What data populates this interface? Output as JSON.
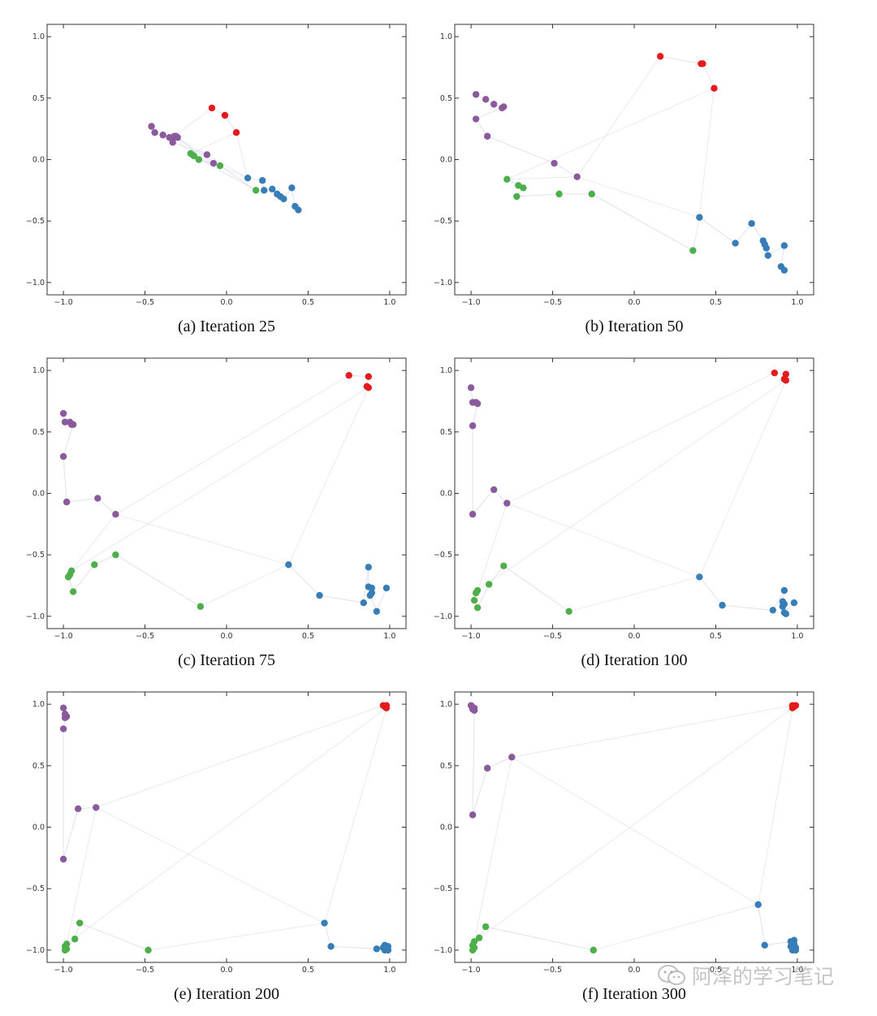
{
  "figure": {
    "watermark": "阿泽的学习笔记",
    "colors": {
      "purple": "#8a5a9c",
      "red": "#e41a1c",
      "green": "#4daf4a",
      "blue": "#377eb8",
      "edge": "#d7d7ea"
    }
  },
  "chart_data": [
    {
      "type": "scatter",
      "caption": "(a) Iteration 25",
      "xlim": [
        -1.1,
        1.1
      ],
      "ylim": [
        -1.1,
        1.1
      ],
      "xticks": [
        "−1.0",
        "−0.5",
        "0.0",
        "0.5",
        "1.0"
      ],
      "yticks": [
        "1.0",
        "0.5",
        "0.0",
        "−0.5",
        "−1.0"
      ],
      "grid": false,
      "series": [
        {
          "color": "purple",
          "points": [
            [
              -0.46,
              0.27
            ],
            [
              -0.44,
              0.22
            ],
            [
              -0.39,
              0.2
            ],
            [
              -0.35,
              0.18
            ],
            [
              -0.33,
              0.17
            ],
            [
              -0.3,
              0.18
            ],
            [
              -0.31,
              0.19
            ],
            [
              -0.33,
              0.14
            ],
            [
              -0.12,
              0.04
            ],
            [
              -0.08,
              -0.03
            ],
            [
              -0.32,
              0.19
            ]
          ]
        },
        {
          "color": "red",
          "points": [
            [
              -0.09,
              0.42
            ],
            [
              -0.01,
              0.36
            ],
            [
              0.06,
              0.22
            ]
          ]
        },
        {
          "color": "green",
          "points": [
            [
              -0.22,
              0.05
            ],
            [
              -0.2,
              0.03
            ],
            [
              -0.17,
              0.0
            ],
            [
              -0.04,
              -0.05
            ],
            [
              0.18,
              -0.25
            ],
            [
              -0.21,
              0.04
            ]
          ]
        },
        {
          "color": "blue",
          "points": [
            [
              0.13,
              -0.15
            ],
            [
              0.22,
              -0.17
            ],
            [
              0.23,
              -0.25
            ],
            [
              0.28,
              -0.24
            ],
            [
              0.31,
              -0.28
            ],
            [
              0.33,
              -0.3
            ],
            [
              0.35,
              -0.32
            ],
            [
              0.4,
              -0.23
            ],
            [
              0.42,
              -0.38
            ],
            [
              0.44,
              -0.41
            ]
          ]
        }
      ]
    },
    {
      "type": "scatter",
      "caption": "(b) Iteration 50",
      "xlim": [
        -1.1,
        1.1
      ],
      "ylim": [
        -1.1,
        1.1
      ],
      "xticks": [
        "−1.0",
        "−0.5",
        "0.0",
        "0.5",
        "1.0"
      ],
      "yticks": [
        "1.0",
        "0.5",
        "0.0",
        "−0.5",
        "−1.0"
      ],
      "grid": false,
      "series": [
        {
          "color": "purple",
          "points": [
            [
              -0.97,
              0.53
            ],
            [
              -0.91,
              0.49
            ],
            [
              -0.86,
              0.45
            ],
            [
              -0.81,
              0.42
            ],
            [
              -0.8,
              0.43
            ],
            [
              -0.97,
              0.33
            ],
            [
              -0.9,
              0.19
            ],
            [
              -0.49,
              -0.03
            ],
            [
              -0.35,
              -0.14
            ]
          ]
        },
        {
          "color": "red",
          "points": [
            [
              0.16,
              0.84
            ],
            [
              0.41,
              0.78
            ],
            [
              0.42,
              0.78
            ],
            [
              0.49,
              0.58
            ]
          ]
        },
        {
          "color": "green",
          "points": [
            [
              -0.78,
              -0.16
            ],
            [
              -0.71,
              -0.21
            ],
            [
              -0.68,
              -0.23
            ],
            [
              -0.72,
              -0.3
            ],
            [
              -0.46,
              -0.28
            ],
            [
              -0.26,
              -0.28
            ],
            [
              0.36,
              -0.74
            ]
          ]
        },
        {
          "color": "blue",
          "points": [
            [
              0.4,
              -0.47
            ],
            [
              0.62,
              -0.68
            ],
            [
              0.72,
              -0.52
            ],
            [
              0.79,
              -0.66
            ],
            [
              0.8,
              -0.69
            ],
            [
              0.81,
              -0.72
            ],
            [
              0.82,
              -0.78
            ],
            [
              0.92,
              -0.7
            ],
            [
              0.9,
              -0.87
            ],
            [
              0.92,
              -0.9
            ]
          ]
        }
      ]
    },
    {
      "type": "scatter",
      "caption": "(c) Iteration 75",
      "xlim": [
        -1.1,
        1.1
      ],
      "ylim": [
        -1.1,
        1.1
      ],
      "xticks": [
        "−1.0",
        "−0.5",
        "0.0",
        "0.5",
        "1.0"
      ],
      "yticks": [
        "1.0",
        "0.5",
        "0.0",
        "−0.5",
        "−1.0"
      ],
      "grid": false,
      "series": [
        {
          "color": "purple",
          "points": [
            [
              -1.0,
              0.65
            ],
            [
              -0.99,
              0.58
            ],
            [
              -0.96,
              0.58
            ],
            [
              -0.95,
              0.56
            ],
            [
              -0.94,
              0.56
            ],
            [
              -1.0,
              0.3
            ],
            [
              -0.98,
              -0.07
            ],
            [
              -0.79,
              -0.04
            ],
            [
              -0.68,
              -0.17
            ]
          ]
        },
        {
          "color": "red",
          "points": [
            [
              0.75,
              0.96
            ],
            [
              0.87,
              0.95
            ],
            [
              0.86,
              0.87
            ],
            [
              0.87,
              0.86
            ]
          ]
        },
        {
          "color": "green",
          "points": [
            [
              -0.95,
              -0.63
            ],
            [
              -0.96,
              -0.66
            ],
            [
              -0.97,
              -0.68
            ],
            [
              -0.94,
              -0.8
            ],
            [
              -0.81,
              -0.58
            ],
            [
              -0.68,
              -0.5
            ],
            [
              -0.16,
              -0.92
            ]
          ]
        },
        {
          "color": "blue",
          "points": [
            [
              0.38,
              -0.58
            ],
            [
              0.57,
              -0.83
            ],
            [
              0.84,
              -0.89
            ],
            [
              0.87,
              -0.6
            ],
            [
              0.87,
              -0.76
            ],
            [
              0.89,
              -0.77
            ],
            [
              0.89,
              -0.81
            ],
            [
              0.88,
              -0.83
            ],
            [
              0.92,
              -0.96
            ],
            [
              0.98,
              -0.77
            ]
          ]
        }
      ]
    },
    {
      "type": "scatter",
      "caption": "(d) Iteration 100",
      "xlim": [
        -1.1,
        1.1
      ],
      "ylim": [
        -1.1,
        1.1
      ],
      "xticks": [
        "−1.0",
        "−0.5",
        "0.0",
        "0.5",
        "1.0"
      ],
      "yticks": [
        "1.0",
        "0.5",
        "0.0",
        "−0.5",
        "−1.0"
      ],
      "grid": false,
      "series": [
        {
          "color": "purple",
          "points": [
            [
              -1.0,
              0.86
            ],
            [
              -0.99,
              0.74
            ],
            [
              -0.97,
              0.74
            ],
            [
              -0.96,
              0.73
            ],
            [
              -0.99,
              0.55
            ],
            [
              -0.99,
              -0.17
            ],
            [
              -0.86,
              0.03
            ],
            [
              -0.78,
              -0.08
            ]
          ]
        },
        {
          "color": "red",
          "points": [
            [
              0.86,
              0.98
            ],
            [
              0.93,
              0.97
            ],
            [
              0.92,
              0.93
            ],
            [
              0.93,
              0.92
            ]
          ]
        },
        {
          "color": "green",
          "points": [
            [
              -0.96,
              -0.79
            ],
            [
              -0.97,
              -0.81
            ],
            [
              -0.98,
              -0.87
            ],
            [
              -0.96,
              -0.93
            ],
            [
              -0.89,
              -0.74
            ],
            [
              -0.8,
              -0.59
            ],
            [
              -0.4,
              -0.96
            ]
          ]
        },
        {
          "color": "blue",
          "points": [
            [
              0.4,
              -0.68
            ],
            [
              0.54,
              -0.91
            ],
            [
              0.85,
              -0.95
            ],
            [
              0.92,
              -0.79
            ],
            [
              0.91,
              -0.88
            ],
            [
              0.92,
              -0.9
            ],
            [
              0.91,
              -0.92
            ],
            [
              0.93,
              -0.98
            ],
            [
              0.92,
              -0.97
            ],
            [
              0.98,
              -0.89
            ]
          ]
        }
      ]
    },
    {
      "type": "scatter",
      "caption": "(e) Iteration 200",
      "xlim": [
        -1.1,
        1.1
      ],
      "ylim": [
        -1.1,
        1.1
      ],
      "xticks": [
        "−1.0",
        "−0.5",
        "0.0",
        "0.5",
        "1.0"
      ],
      "yticks": [
        "1.0",
        "0.5",
        "0.0",
        "−0.5",
        "−1.0"
      ],
      "grid": false,
      "series": [
        {
          "color": "purple",
          "points": [
            [
              -1.0,
              0.97
            ],
            [
              -0.99,
              0.92
            ],
            [
              -0.98,
              0.9
            ],
            [
              -0.99,
              0.89
            ],
            [
              -1.0,
              0.8
            ],
            [
              -1.0,
              -0.26
            ],
            [
              -0.91,
              0.15
            ],
            [
              -0.8,
              0.16
            ]
          ]
        },
        {
          "color": "red",
          "points": [
            [
              0.96,
              0.99
            ],
            [
              0.98,
              0.99
            ],
            [
              0.97,
              0.98
            ],
            [
              0.98,
              0.97
            ]
          ]
        },
        {
          "color": "green",
          "points": [
            [
              -0.98,
              -0.95
            ],
            [
              -0.99,
              -0.97
            ],
            [
              -0.98,
              -0.99
            ],
            [
              -0.99,
              -1.0
            ],
            [
              -0.93,
              -0.91
            ],
            [
              -0.9,
              -0.78
            ],
            [
              -0.48,
              -1.0
            ]
          ]
        },
        {
          "color": "blue",
          "points": [
            [
              0.6,
              -0.78
            ],
            [
              0.64,
              -0.97
            ],
            [
              0.92,
              -0.99
            ],
            [
              0.97,
              -0.96
            ],
            [
              0.98,
              -0.98
            ],
            [
              0.99,
              -0.97
            ],
            [
              0.97,
              -1.0
            ],
            [
              0.98,
              -0.99
            ],
            [
              0.99,
              -1.0
            ],
            [
              0.96,
              -0.98
            ]
          ]
        }
      ]
    },
    {
      "type": "scatter",
      "caption": "(f) Iteration 300",
      "xlim": [
        -1.1,
        1.1
      ],
      "ylim": [
        -1.1,
        1.1
      ],
      "xticks": [
        "−1.0",
        "−0.5",
        "0.0",
        "0.5",
        "1.0"
      ],
      "yticks": [
        "1.0",
        "0.5",
        "0.0",
        "−0.5",
        "−1.0"
      ],
      "grid": false,
      "series": [
        {
          "color": "purple",
          "points": [
            [
              -1.0,
              0.99
            ],
            [
              -0.99,
              0.96
            ],
            [
              -0.98,
              0.97
            ],
            [
              -0.98,
              0.95
            ],
            [
              -0.99,
              0.1
            ],
            [
              -0.9,
              0.48
            ],
            [
              -0.75,
              0.57
            ]
          ]
        },
        {
          "color": "red",
          "points": [
            [
              0.97,
              0.99
            ],
            [
              0.99,
              0.99
            ],
            [
              0.98,
              0.98
            ],
            [
              0.97,
              0.97
            ]
          ]
        },
        {
          "color": "green",
          "points": [
            [
              -0.98,
              -0.93
            ],
            [
              -0.99,
              -0.96
            ],
            [
              -0.98,
              -0.98
            ],
            [
              -0.99,
              -1.0
            ],
            [
              -0.95,
              -0.9
            ],
            [
              -0.91,
              -0.81
            ],
            [
              -0.25,
              -1.0
            ]
          ]
        },
        {
          "color": "blue",
          "points": [
            [
              0.76,
              -0.63
            ],
            [
              0.8,
              -0.96
            ],
            [
              0.96,
              -0.93
            ],
            [
              0.98,
              -0.95
            ],
            [
              0.99,
              -0.98
            ],
            [
              0.97,
              -1.0
            ],
            [
              0.98,
              -0.99
            ],
            [
              0.99,
              -1.0
            ],
            [
              0.96,
              -0.97
            ],
            [
              0.98,
              -0.92
            ]
          ]
        }
      ]
    }
  ]
}
